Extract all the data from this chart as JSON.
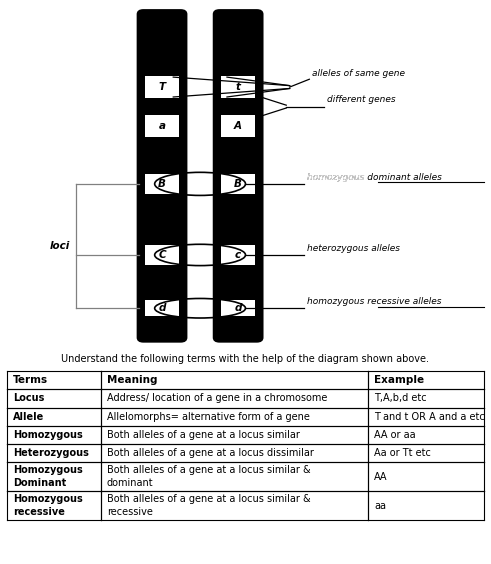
{
  "title_text": "Understand the following terms with the help of the diagram shown above.",
  "table_headers": [
    "Terms",
    "Meaning",
    "Example"
  ],
  "table_rows": [
    [
      "Locus",
      "Address/ location of a gene in a chromosome",
      "T,A,b,d etc"
    ],
    [
      "Allele",
      "Allelomorphs= alternative form of a gene",
      "T and t OR A and a etc"
    ],
    [
      "Homozygous",
      "Both alleles of a gene at a locus similar",
      "AA or aa"
    ],
    [
      "Heterozygous",
      "Both alleles of a gene at a locus dissimilar",
      "Aa or Tt etc"
    ],
    [
      "Homozygous\nDominant",
      "Both alleles of a gene at a locus similar &\ndominant",
      "AA"
    ],
    [
      "Homozygous\nrecessive",
      "Both alleles of a gene at a locus similar &\nrecessive",
      "aa"
    ]
  ],
  "chrom_labels_left": [
    "T",
    "a",
    "B",
    "C",
    "d"
  ],
  "chrom_labels_right": [
    "t",
    "A",
    "B",
    "c",
    "d"
  ],
  "annotations": [
    "alleles of same gene",
    "different genes",
    "homozygous dominant alleles",
    "heterozygous alleles",
    "homozygous recessive alleles"
  ],
  "underline_annots": [
    2,
    4
  ],
  "underline_words": [
    "dominant alleles",
    "recessive alleles"
  ],
  "loci_label": "loci",
  "bg_color": "#ffffff"
}
